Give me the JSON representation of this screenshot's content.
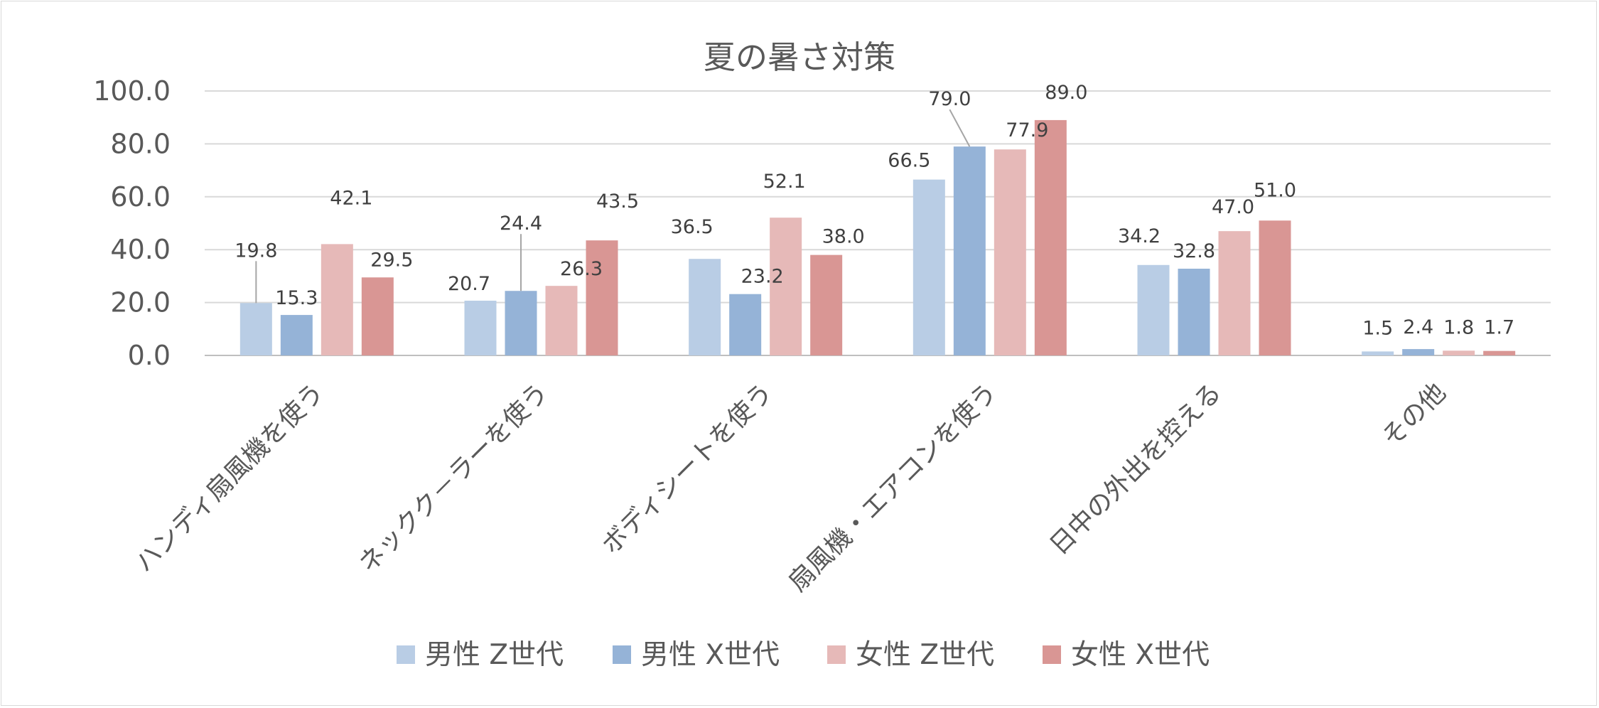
{
  "chart_data": {
    "type": "bar",
    "title": "夏の暑さ対策",
    "categories": [
      "ハンディ扇風機を使う",
      "ネックク－ラーを使う",
      "ボディシートを使う",
      "扇風機・エアコンを使う",
      "日中の外出を控える",
      "その他"
    ],
    "series": [
      {
        "name": "男性 Z世代",
        "color": "#b9cde5",
        "values": [
          19.8,
          20.7,
          36.5,
          66.5,
          34.2,
          1.5
        ]
      },
      {
        "name": "男性 X世代",
        "color": "#95b3d7",
        "values": [
          15.3,
          24.4,
          23.2,
          79.0,
          32.8,
          2.4
        ]
      },
      {
        "name": "女性 Z世代",
        "color": "#e6b9b8",
        "values": [
          42.1,
          26.3,
          52.1,
          77.9,
          47.0,
          1.8
        ]
      },
      {
        "name": "女性 X世代",
        "color": "#d99694",
        "values": [
          29.5,
          43.5,
          38.0,
          89.0,
          51.0,
          1.7
        ]
      }
    ],
    "ylim": [
      0,
      100
    ],
    "yticks": [
      "0.0",
      "20.0",
      "40.0",
      "60.0",
      "80.0",
      "100.0"
    ],
    "xlabel": "",
    "ylabel": "",
    "legend_position": "bottom",
    "gridlines": true
  }
}
